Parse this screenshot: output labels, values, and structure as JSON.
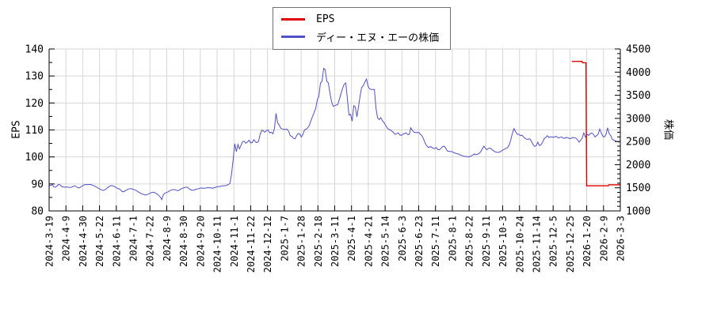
{
  "legend": {
    "items": [
      {
        "label": "EPS",
        "color": "#e10000"
      },
      {
        "label": "ディー・エヌ・エーの株価",
        "color": "#5050c8"
      }
    ]
  },
  "chart_data": {
    "type": "line",
    "title": "",
    "grid": true,
    "legend_position": "top-center",
    "x_axis": {
      "tick_labels": [
        "2024-3-19",
        "2024-4-9",
        "2024-4-30",
        "2024-5-22",
        "2024-6-11",
        "2024-7-1",
        "2024-7-22",
        "2024-8-9",
        "2024-8-30",
        "2024-9-20",
        "2024-10-11",
        "2024-11-1",
        "2024-11-22",
        "2024-12-12",
        "2025-1-7",
        "2025-1-28",
        "2025-2-18",
        "2025-3-11",
        "2025-4-1",
        "2025-4-21",
        "2025-5-14",
        "2025-6-3",
        "2025-6-23",
        "2025-7-11",
        "2025-8-1",
        "2025-8-22",
        "2025-9-11",
        "2025-10-3",
        "2025-10-24",
        "2025-11-14",
        "2025-12-5",
        "2025-12-25",
        "2026-1-20",
        "2026-2-9",
        "2026-3-3"
      ]
    },
    "y_axis_left": {
      "label": "EPS",
      "min": 80,
      "max": 140,
      "tick_step": 10,
      "minor_step": 5
    },
    "y_axis_right": {
      "label": "株価",
      "min": 1000,
      "max": 4500,
      "tick_step": 500,
      "minor_step": 100
    },
    "series": [
      {
        "name": "EPS",
        "axis": "left",
        "color": "#e10000",
        "points_pct_value": [
          [
            91.5,
            135.4
          ],
          [
            93.3,
            135.4
          ],
          [
            93.4,
            134.9
          ],
          [
            94.0,
            134.9
          ],
          [
            94.1,
            89.3
          ],
          [
            97.9,
            89.3
          ],
          [
            98.0,
            89.7
          ],
          [
            100,
            89.7
          ]
        ]
      },
      {
        "name": "ディー・エヌ・エーの株価",
        "axis": "right",
        "color": "#5050c8",
        "x_start_pct": 0,
        "x_end_pct": 100,
        "values": [
          1537,
          1554,
          1566,
          1519,
          1513,
          1543,
          1572,
          1560,
          1525,
          1519,
          1513,
          1519,
          1513,
          1508,
          1513,
          1525,
          1543,
          1531,
          1502,
          1496,
          1519,
          1543,
          1560,
          1572,
          1566,
          1572,
          1572,
          1560,
          1548,
          1531,
          1513,
          1490,
          1473,
          1455,
          1443,
          1455,
          1478,
          1508,
          1531,
          1548,
          1543,
          1531,
          1513,
          1490,
          1478,
          1455,
          1420,
          1414,
          1438,
          1455,
          1473,
          1484,
          1478,
          1467,
          1455,
          1438,
          1414,
          1397,
          1373,
          1362,
          1350,
          1344,
          1356,
          1373,
          1391,
          1403,
          1403,
          1385,
          1368,
          1338,
          1303,
          1245,
          1350,
          1385,
          1397,
          1414,
          1438,
          1449,
          1461,
          1461,
          1449,
          1438,
          1449,
          1473,
          1490,
          1502,
          1513,
          1513,
          1490,
          1461,
          1449,
          1449,
          1461,
          1473,
          1478,
          1490,
          1496,
          1490,
          1490,
          1496,
          1502,
          1502,
          1496,
          1490,
          1502,
          1513,
          1525,
          1525,
          1531,
          1543,
          1543,
          1548,
          1554,
          1572,
          1595,
          1805,
          2108,
          2453,
          2283,
          2435,
          2342,
          2423,
          2499,
          2505,
          2464,
          2487,
          2528,
          2470,
          2476,
          2540,
          2493,
          2476,
          2505,
          2657,
          2744,
          2727,
          2703,
          2738,
          2750,
          2686,
          2703,
          2668,
          2779,
          3106,
          2907,
          2855,
          2785,
          2773,
          2762,
          2762,
          2767,
          2721,
          2627,
          2610,
          2569,
          2557,
          2627,
          2674,
          2662,
          2598,
          2657,
          2750,
          2767,
          2797,
          2849,
          2954,
          3042,
          3123,
          3217,
          3398,
          3479,
          3765,
          3800,
          4080,
          4051,
          3800,
          3771,
          3538,
          3363,
          3263,
          3275,
          3287,
          3304,
          3421,
          3538,
          3654,
          3742,
          3765,
          3421,
          3071,
          3088,
          2937,
          3275,
          3246,
          3030,
          3246,
          3479,
          3671,
          3706,
          3788,
          3852,
          3695,
          3637,
          3625,
          3625,
          3625,
          3217,
          3012,
          2972,
          3018,
          2954,
          2913,
          2855,
          2797,
          2762,
          2750,
          2727,
          2697,
          2657,
          2668,
          2686,
          2645,
          2633,
          2657,
          2674,
          2686,
          2651,
          2651,
          2797,
          2738,
          2703,
          2692,
          2697,
          2692,
          2657,
          2622,
          2552,
          2464,
          2406,
          2371,
          2388,
          2382,
          2353,
          2348,
          2371,
          2324,
          2324,
          2353,
          2388,
          2400,
          2353,
          2295,
          2289,
          2283,
          2283,
          2260,
          2248,
          2237,
          2231,
          2213,
          2202,
          2184,
          2178,
          2178,
          2167,
          2172,
          2190,
          2207,
          2231,
          2213,
          2225,
          2243,
          2278,
          2342,
          2400,
          2353,
          2324,
          2353,
          2359,
          2330,
          2301,
          2278,
          2266,
          2266,
          2272,
          2295,
          2318,
          2336,
          2353,
          2371,
          2429,
          2540,
          2680,
          2779,
          2715,
          2657,
          2657,
          2627,
          2639,
          2598,
          2569,
          2546,
          2552,
          2557,
          2505,
          2435,
          2394,
          2412,
          2487,
          2412,
          2429,
          2482,
          2563,
          2587,
          2627,
          2587,
          2604,
          2598,
          2592,
          2610,
          2604,
          2575,
          2592,
          2598,
          2575,
          2569,
          2587,
          2581,
          2563,
          2569,
          2587,
          2581,
          2575,
          2540,
          2487,
          2528,
          2575,
          2686,
          2598,
          2657,
          2633,
          2668,
          2686,
          2657,
          2598,
          2627,
          2657,
          2767,
          2686,
          2610,
          2598,
          2657,
          2797,
          2668,
          2627,
          2546,
          2528,
          2511,
          2499,
          2487,
          2511
        ]
      }
    ]
  }
}
